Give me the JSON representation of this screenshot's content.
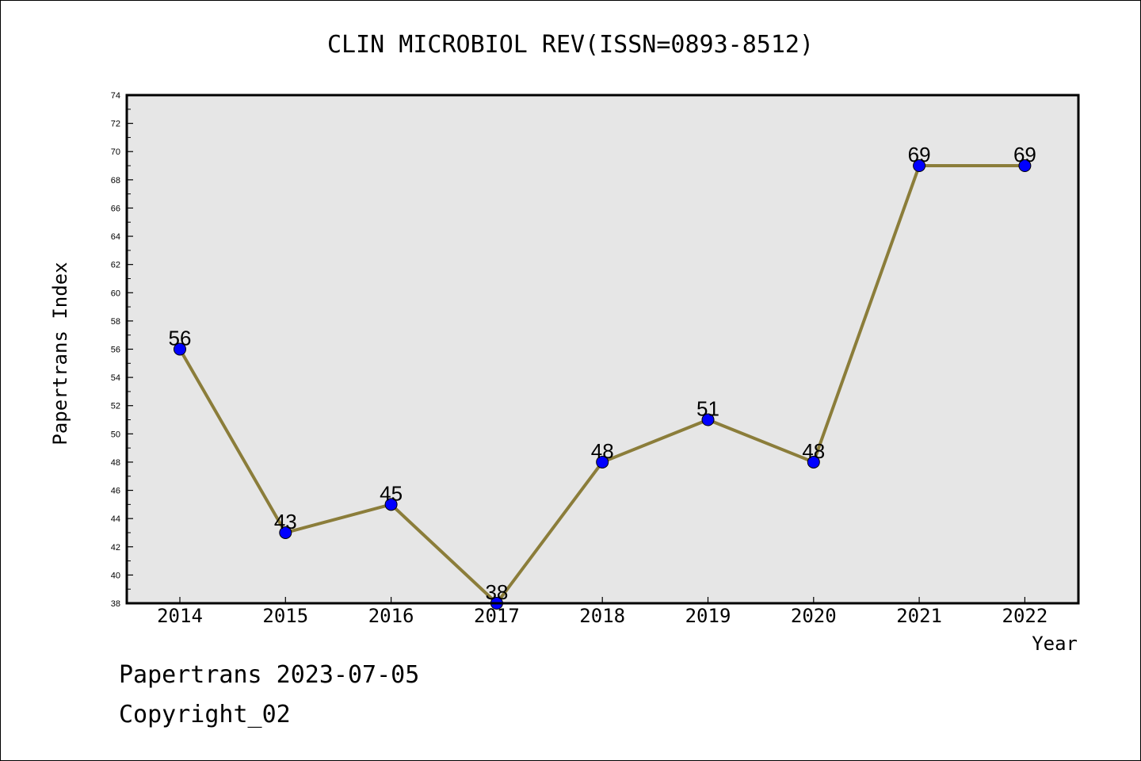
{
  "chart_data": {
    "type": "line",
    "title": "CLIN MICROBIOL REV(ISSN=0893-8512)",
    "xlabel": "Year",
    "ylabel": "Papertrans Index",
    "categories": [
      "2014",
      "2015",
      "2016",
      "2017",
      "2018",
      "2019",
      "2020",
      "2021",
      "2022"
    ],
    "series": [
      {
        "values": [
          56,
          43,
          45,
          38,
          48,
          51,
          48,
          69,
          69
        ]
      }
    ],
    "ylim": [
      38,
      74
    ],
    "yticks": [
      38,
      40,
      42,
      44,
      46,
      48,
      50,
      52,
      54,
      56,
      58,
      60,
      62,
      64,
      66,
      68,
      70,
      72,
      74
    ],
    "data_labels": [
      "56",
      "43",
      "45",
      "38",
      "48",
      "51",
      "48",
      "69",
      "69"
    ],
    "grid": false,
    "colors": {
      "line": "#8B7D3A",
      "marker": "#0000FF",
      "plot_background": "#E6E6E6"
    }
  },
  "footer": {
    "date_text": "Papertrans 2023-07-05",
    "copyright_text": "Copyright_02"
  }
}
